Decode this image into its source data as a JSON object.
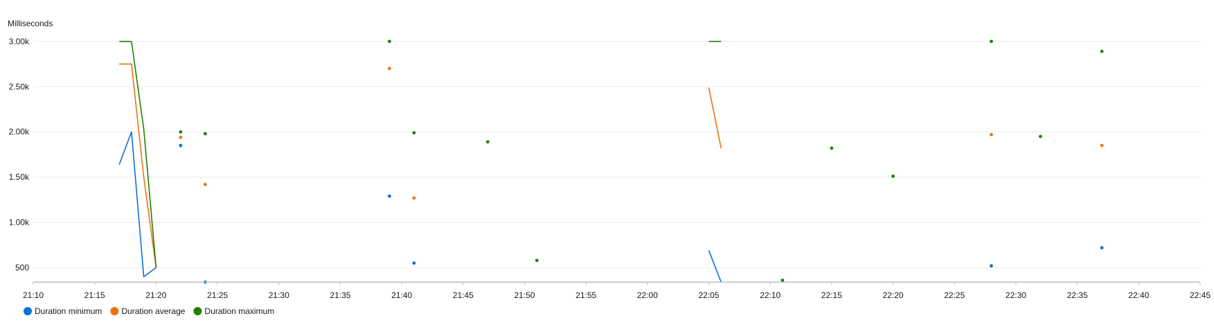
{
  "chart_data": {
    "type": "line",
    "y_unit_label": "Milliseconds",
    "x_ticks": [
      "21:10",
      "21:15",
      "21:20",
      "21:25",
      "21:30",
      "21:35",
      "21:40",
      "21:45",
      "21:50",
      "21:55",
      "22:00",
      "22:05",
      "22:10",
      "22:15",
      "22:20",
      "22:25",
      "22:30",
      "22:35",
      "22:40",
      "22:45"
    ],
    "y_ticks": [
      "500",
      "1.00k",
      "1.50k",
      "2.00k",
      "2.50k",
      "3.00k"
    ],
    "xlim": [
      "21:10",
      "22:45"
    ],
    "ylim": [
      340,
      3060
    ],
    "grid": true,
    "legend_position": "bottom-left",
    "series": [
      {
        "name": "Duration minimum",
        "color": "#0972d3",
        "points": [
          [
            "21:17",
            1640
          ],
          [
            "21:18",
            2000
          ],
          [
            "21:19",
            400
          ],
          [
            "21:20",
            500
          ],
          null,
          [
            "21:22",
            1850
          ],
          null,
          [
            "21:24",
            340
          ],
          null,
          [
            "21:39",
            1290
          ],
          null,
          [
            "21:41",
            550
          ],
          null,
          [
            "22:05",
            690
          ],
          [
            "22:06",
            340
          ],
          null,
          [
            "22:28",
            520
          ],
          null,
          [
            "22:37",
            720
          ]
        ]
      },
      {
        "name": "Duration average",
        "color": "#ec7211",
        "points": [
          [
            "21:17",
            2750
          ],
          [
            "21:18",
            2750
          ],
          [
            "21:19",
            1500
          ],
          [
            "21:20",
            500
          ],
          null,
          [
            "21:22",
            1940
          ],
          null,
          [
            "21:24",
            1420
          ],
          null,
          [
            "21:39",
            2700
          ],
          null,
          [
            "21:41",
            1270
          ],
          null,
          [
            "22:05",
            2490
          ],
          [
            "22:06",
            1820
          ],
          null,
          [
            "22:28",
            1970
          ],
          null,
          [
            "22:37",
            1850
          ]
        ]
      },
      {
        "name": "Duration maximum",
        "color": "#1d8102",
        "points": [
          [
            "21:17",
            3000
          ],
          [
            "21:18",
            3000
          ],
          [
            "21:19",
            2030
          ],
          [
            "21:20",
            500
          ],
          null,
          [
            "21:22",
            2000
          ],
          null,
          [
            "21:24",
            1980
          ],
          null,
          [
            "21:39",
            3000
          ],
          null,
          [
            "21:41",
            1990
          ],
          null,
          [
            "21:47",
            1890
          ],
          null,
          [
            "21:51",
            580
          ],
          null,
          [
            "22:05",
            3000
          ],
          [
            "22:06",
            3000
          ],
          null,
          [
            "22:11",
            360
          ],
          null,
          [
            "22:15",
            1820
          ],
          null,
          [
            "22:20",
            1510
          ],
          null,
          [
            "22:28",
            3000
          ],
          null,
          [
            "22:32",
            1950
          ],
          null,
          [
            "22:37",
            2890
          ]
        ]
      }
    ]
  }
}
